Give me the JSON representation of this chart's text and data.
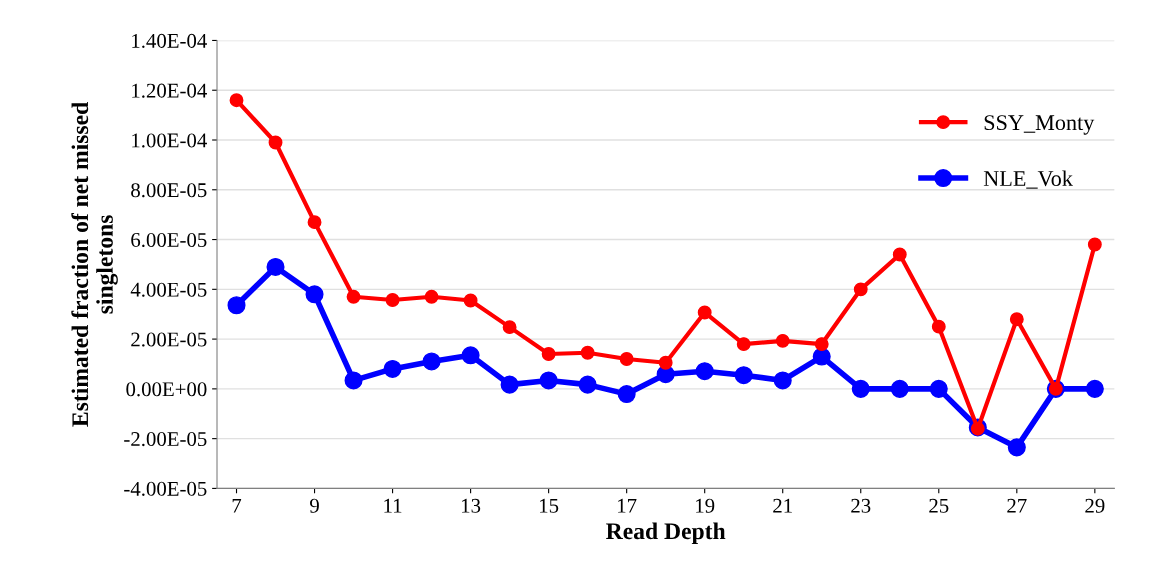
{
  "chart_data": {
    "type": "line",
    "xlabel": "Read Depth",
    "ylabel": "Estimated fraction of net missed\nsingletons",
    "x": [
      7,
      8,
      9,
      10,
      11,
      12,
      13,
      14,
      15,
      16,
      17,
      18,
      19,
      20,
      21,
      22,
      23,
      24,
      25,
      26,
      27,
      28,
      29
    ],
    "series": [
      {
        "name": "SSY_Monty",
        "color": "#ff0000",
        "values": [
          0.000116,
          9.9e-05,
          6.7e-05,
          3.7e-05,
          3.57e-05,
          3.7e-05,
          3.55e-05,
          2.48e-05,
          1.4e-05,
          1.45e-05,
          1.2e-05,
          1.05e-05,
          3.07e-05,
          1.8e-05,
          1.93e-05,
          1.8e-05,
          4e-05,
          5.4e-05,
          2.5e-05,
          -1.6e-05,
          2.8e-05,
          0,
          5.8e-05
        ]
      },
      {
        "name": "NLE_Vok",
        "color": "#0000ff",
        "values": [
          3.36e-05,
          4.9e-05,
          3.8e-05,
          3.4e-06,
          8e-06,
          1.1e-05,
          1.35e-05,
          1.7e-06,
          3.4e-06,
          1.7e-06,
          -2.1e-06,
          5.9e-06,
          7.1e-06,
          5.5e-06,
          3.4e-06,
          1.3e-05,
          0,
          0,
          0,
          -1.55e-05,
          -2.35e-05,
          0,
          0
        ]
      }
    ],
    "xlim": [
      6.5,
      29.5
    ],
    "xticks": [
      7,
      9,
      11,
      13,
      15,
      17,
      19,
      21,
      23,
      25,
      27,
      29
    ],
    "ylim": [
      -4e-05,
      0.00014
    ],
    "yticks": [
      {
        "value": -4e-05,
        "label": "-4.00E-05"
      },
      {
        "value": -2e-05,
        "label": "-2.00E-05"
      },
      {
        "value": 0,
        "label": "0.00E+00"
      },
      {
        "value": 2e-05,
        "label": "2.00E-05"
      },
      {
        "value": 4e-05,
        "label": "4.00E-05"
      },
      {
        "value": 6e-05,
        "label": "6.00E-05"
      },
      {
        "value": 8e-05,
        "label": "8.00E-05"
      },
      {
        "value": 0.0001,
        "label": "1.00E-04"
      },
      {
        "value": 0.00012,
        "label": "1.20E-04"
      },
      {
        "value": 0.00014,
        "label": "1.40E-04"
      }
    ],
    "grid": "y",
    "legend": "right",
    "marker": "circle",
    "line_style": "solid"
  }
}
